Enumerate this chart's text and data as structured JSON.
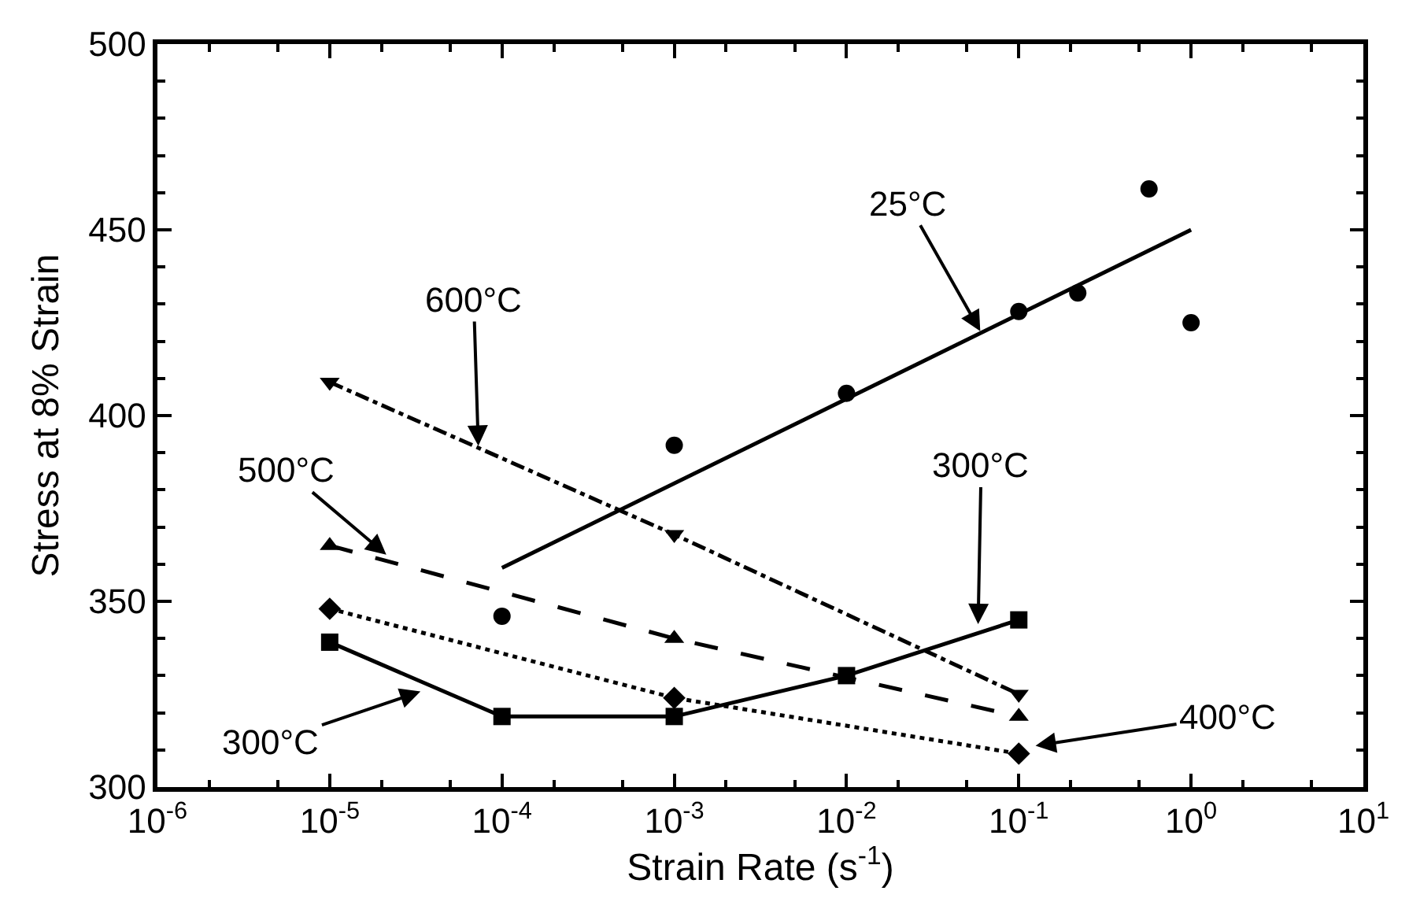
{
  "chart_data": {
    "type": "line",
    "xlabel": "Strain Rate (s$^{-1}$)",
    "ylabel": "Stress at 8% Strain",
    "log": "x",
    "xlim": [
      1e-06,
      10
    ],
    "xticks": [
      {
        "value": 1e-06,
        "label": "10$^{-6}$"
      },
      {
        "value": 1e-05,
        "label": "10$^{-5}$"
      },
      {
        "value": 0.0001,
        "label": "10$^{-4}$"
      },
      {
        "value": 0.001,
        "label": "10$^{-3}$"
      },
      {
        "value": 0.01,
        "label": "10$^{-2}$"
      },
      {
        "value": 0.1,
        "label": "10$^{-1}$"
      },
      {
        "value": 1,
        "label": "10$^{0}$"
      },
      {
        "value": 10,
        "label": "10$^{1}$"
      }
    ],
    "ylim": [
      300,
      500
    ],
    "yticks": [
      300,
      350,
      400,
      450,
      500
    ],
    "series": [
      {
        "type": "scatter",
        "marker": "circle",
        "color": "#000000",
        "x": [
          0.0001,
          0.001,
          0.01,
          0.1,
          0.22,
          0.57,
          1
        ],
        "values": [
          346,
          392,
          406,
          428,
          433,
          461,
          425
        ]
      },
      {
        "marker": "none",
        "line_style": "solid",
        "color": "#000000",
        "x": [
          0.0001,
          1
        ],
        "values": [
          359,
          450
        ]
      },
      {
        "marker": "triangle-down",
        "line_style": "dashdot",
        "color": "#000000",
        "x": [
          1e-05,
          0.001,
          0.1
        ],
        "values": [
          409,
          368,
          325
        ]
      },
      {
        "marker": "triangle",
        "line_style": "longdash",
        "color": "#000000",
        "x": [
          1e-05,
          0.001,
          0.1
        ],
        "values": [
          365,
          340,
          319
        ]
      },
      {
        "marker": "diamond",
        "line_style": "dotted",
        "color": "#000000",
        "x": [
          1e-05,
          0.001,
          0.1
        ],
        "values": [
          348,
          324,
          309
        ]
      },
      {
        "marker": "square",
        "line_style": "solid",
        "color": "#000000",
        "x": [
          1e-05,
          0.0001,
          0.001,
          0.01,
          0.1
        ],
        "values": [
          339,
          319,
          319,
          330,
          345
        ]
      }
    ],
    "annotations": [
      {
        "text": "25°C",
        "x": 0.061,
        "y": 422
      },
      {
        "text": "600°C",
        "x": 7.3e-05,
        "y": 391
      },
      {
        "text": "500°C",
        "x": 2.2e-05,
        "y": 362
      },
      {
        "text": "300°C",
        "x": 0.058,
        "y": 343
      },
      {
        "text": "300°C",
        "x": 3.5e-05,
        "y": 326
      },
      {
        "text": "400°C",
        "x": 0.12,
        "y": 311
      }
    ]
  }
}
